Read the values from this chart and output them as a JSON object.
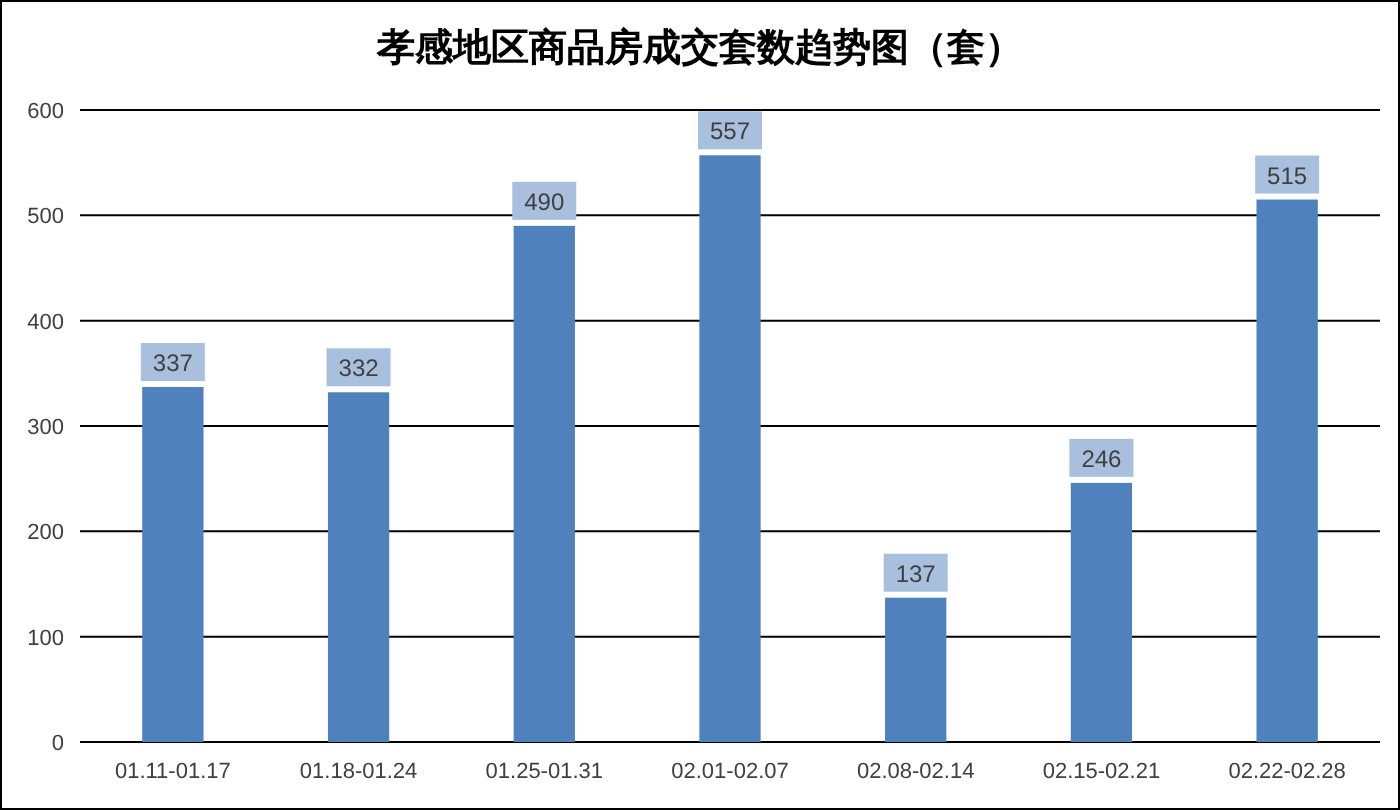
{
  "chart_data": {
    "type": "bar",
    "title": "孝感地区商品房成交套数趋势图（套）",
    "categories": [
      "01.11-01.17",
      "01.18-01.24",
      "01.25-01.31",
      "02.01-02.07",
      "02.08-02.14",
      "02.15-02.21",
      "02.22-02.28"
    ],
    "values": [
      337,
      332,
      490,
      557,
      137,
      246,
      515
    ],
    "color": "#4f81bd",
    "ylim": [
      0,
      600
    ],
    "yticks": [
      0,
      100,
      200,
      300,
      400,
      500,
      600
    ],
    "grid": "y",
    "data_labels": true
  }
}
